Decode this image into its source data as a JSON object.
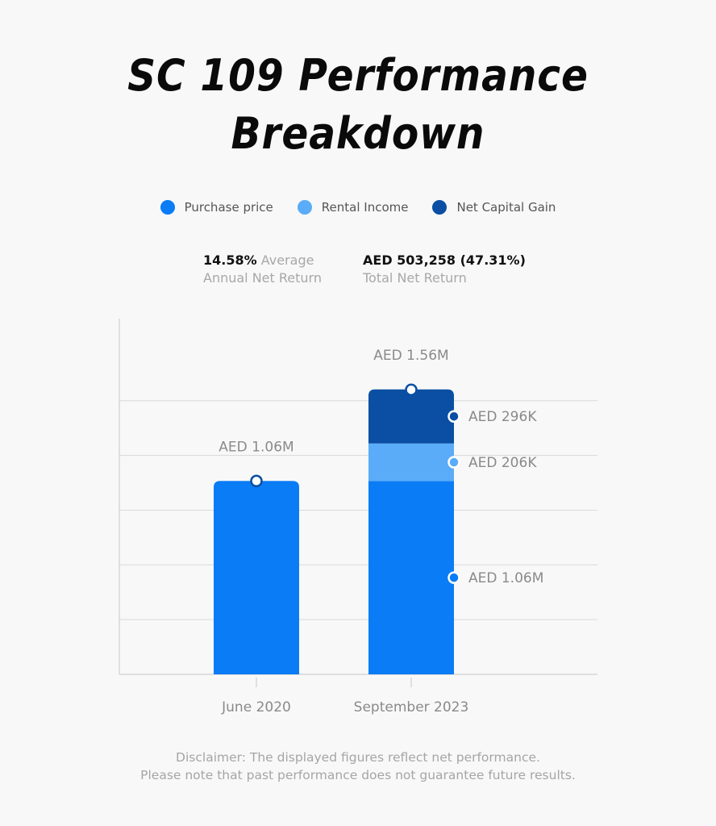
{
  "title": {
    "line1": "SC 109 Performance",
    "line2": "Breakdown"
  },
  "legend": [
    {
      "label": "Purchase price",
      "color": "#0a7cf5"
    },
    {
      "label": "Rental Income",
      "color": "#5aacf8"
    },
    {
      "label": "Net Capital Gain",
      "color": "#0a4fa3"
    }
  ],
  "stats": {
    "return_value": "14.58%",
    "return_label_1": "Average",
    "return_label_2": "Annual Net Return",
    "total_value": "AED 503,258 (47.31%)",
    "total_label": "Total Net Return"
  },
  "chart_data": {
    "type": "bar",
    "stacked": true,
    "categories": [
      "June 2020",
      "September 2023"
    ],
    "series": [
      {
        "name": "Purchase price",
        "color": "#0a7cf5",
        "values": [
          1.06,
          1.06
        ],
        "labels": [
          "",
          "AED 1.06M"
        ]
      },
      {
        "name": "Rental Income",
        "color": "#5aacf8",
        "values": [
          0,
          0.206
        ],
        "labels": [
          "",
          "AED 206K"
        ]
      },
      {
        "name": "Net Capital Gain",
        "color": "#0a4fa3",
        "values": [
          0,
          0.296
        ],
        "labels": [
          "",
          "AED 296K"
        ]
      }
    ],
    "totals": [
      1.06,
      1.56
    ],
    "total_labels": [
      "AED 1.06M",
      "AED 1.56M"
    ],
    "ylim": [
      0,
      1.95
    ],
    "gridlines": [
      0.3,
      0.6,
      0.9,
      1.2,
      1.5
    ],
    "grid": true
  },
  "disclaimer": {
    "line1": "Disclaimer: The displayed figures reflect net performance.",
    "line2": "Please note that past performance does not guarantee future results."
  }
}
